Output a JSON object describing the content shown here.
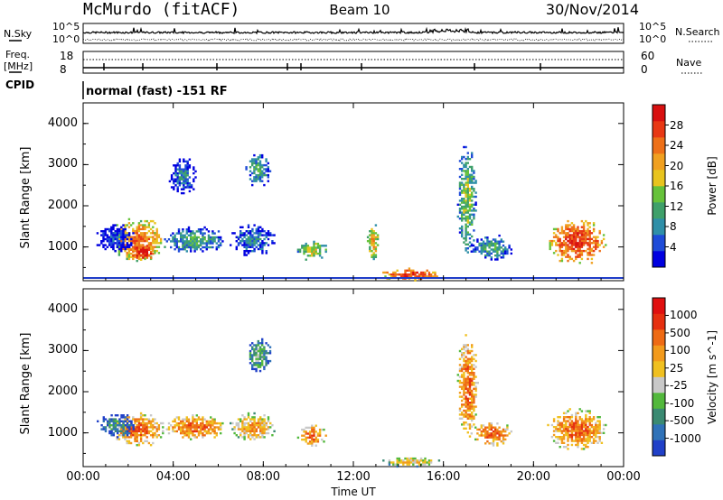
{
  "header": {
    "title": "McMurdo (fitACF)",
    "beam": "Beam 10",
    "date": "30/Nov/2014"
  },
  "strip_panels": {
    "nsky_label": "N.Sky",
    "nsky_ticks": [
      "10^5",
      "10^0"
    ],
    "nsearch_label": "N.Search",
    "nsearch_ticks": [
      "10^5",
      "10^0"
    ],
    "freq_label": "Freq.",
    "freq_unit": "[MHz]",
    "freq_ticks": [
      "18",
      "8"
    ],
    "nave_label": "Nave",
    "nave_ticks": [
      "60",
      "0"
    ],
    "cpid_label": "CPID",
    "cpid_value": "normal (fast) -151 RF"
  },
  "chart_data": [
    {
      "type": "heatmap",
      "name": "power",
      "ylabel": "Slant Range [km]",
      "xlabel": "",
      "ylim": [
        180,
        4500
      ],
      "yticks": [
        "4000",
        "3000",
        "2000",
        "1000"
      ],
      "xticks": [
        "00:00",
        "04:00",
        "08:00",
        "12:00",
        "16:00",
        "20:00",
        "00:00"
      ],
      "colorbar_label": "Power [dB]",
      "colorbar_ticks": [
        "28",
        "24",
        "20",
        "16",
        "12",
        "8",
        "4"
      ],
      "colorbar_colors": [
        "#0000e0",
        "#1e4bd8",
        "#2f8fa8",
        "#3fa06a",
        "#66c23a",
        "#e8c41e",
        "#f0a020",
        "#ee7018",
        "#e83814",
        "#d81010"
      ],
      "blobs": [
        {
          "t": [
            1.2,
            3.6
          ],
          "r": [
            650,
            1700
          ],
          "level": 7
        },
        {
          "t": [
            2.0,
            3.2
          ],
          "r": [
            700,
            1100
          ],
          "level": 9
        },
        {
          "t": [
            3.5,
            6.3
          ],
          "r": [
            850,
            1500
          ],
          "level": 3
        },
        {
          "t": [
            6.5,
            8.5
          ],
          "r": [
            800,
            1600
          ],
          "level": 2
        },
        {
          "t": [
            7.2,
            8.3
          ],
          "r": [
            2500,
            3300
          ],
          "level": 3
        },
        {
          "t": [
            3.8,
            5.0
          ],
          "r": [
            2300,
            3200
          ],
          "level": 2
        },
        {
          "t": [
            9.5,
            10.8
          ],
          "r": [
            700,
            1200
          ],
          "level": 5
        },
        {
          "t": [
            12.6,
            13.1
          ],
          "r": [
            700,
            1600
          ],
          "level": 6
        },
        {
          "t": [
            13.2,
            15.9
          ],
          "r": [
            200,
            500
          ],
          "level": 8
        },
        {
          "t": [
            16.6,
            17.4
          ],
          "r": [
            800,
            3500
          ],
          "level": 4
        },
        {
          "t": [
            17.2,
            19.0
          ],
          "r": [
            700,
            1300
          ],
          "level": 3
        },
        {
          "t": [
            20.6,
            23.2
          ],
          "r": [
            600,
            1700
          ],
          "level": 8
        },
        {
          "t": [
            0.5,
            2.2
          ],
          "r": [
            900,
            1600
          ],
          "level": 1
        }
      ]
    },
    {
      "type": "heatmap",
      "name": "velocity",
      "ylabel": "Slant Range [km]",
      "xlabel": "Time UT",
      "ylim": [
        180,
        4500
      ],
      "yticks": [
        "4000",
        "3000",
        "2000",
        "1000"
      ],
      "xticks": [
        "00:00",
        "04:00",
        "08:00",
        "12:00",
        "16:00",
        "20:00",
        "00:00"
      ],
      "colorbar_label": "Velocity [m s^-1]",
      "colorbar_ticks": [
        "1000",
        "500",
        "100",
        "25",
        "-25",
        "-100",
        "-500",
        "-1000"
      ],
      "colorbar_colors": [
        "#2040c8",
        "#2f72b8",
        "#3a8a72",
        "#52b83c",
        "#c8c8c8",
        "#f0c020",
        "#f29a1c",
        "#ee6a14",
        "#e63010",
        "#e01010"
      ],
      "blobs": [
        {
          "t": [
            1.2,
            3.6
          ],
          "r": [
            700,
            1500
          ],
          "level": 7
        },
        {
          "t": [
            3.5,
            6.3
          ],
          "r": [
            850,
            1450
          ],
          "level": 7
        },
        {
          "t": [
            0.6,
            2.3
          ],
          "r": [
            900,
            1500
          ],
          "level": 2
        },
        {
          "t": [
            6.5,
            8.5
          ],
          "r": [
            800,
            1500
          ],
          "level": 6
        },
        {
          "t": [
            7.2,
            8.3
          ],
          "r": [
            2500,
            3300
          ],
          "level": 3
        },
        {
          "t": [
            9.5,
            10.8
          ],
          "r": [
            700,
            1200
          ],
          "level": 7
        },
        {
          "t": [
            16.6,
            17.5
          ],
          "r": [
            900,
            3400
          ],
          "level": 7
        },
        {
          "t": [
            17.2,
            19.0
          ],
          "r": [
            700,
            1300
          ],
          "level": 7
        },
        {
          "t": [
            20.6,
            23.2
          ],
          "r": [
            600,
            1600
          ],
          "level": 7
        },
        {
          "t": [
            13.2,
            15.9
          ],
          "r": [
            200,
            450
          ],
          "level": 5
        }
      ]
    }
  ]
}
